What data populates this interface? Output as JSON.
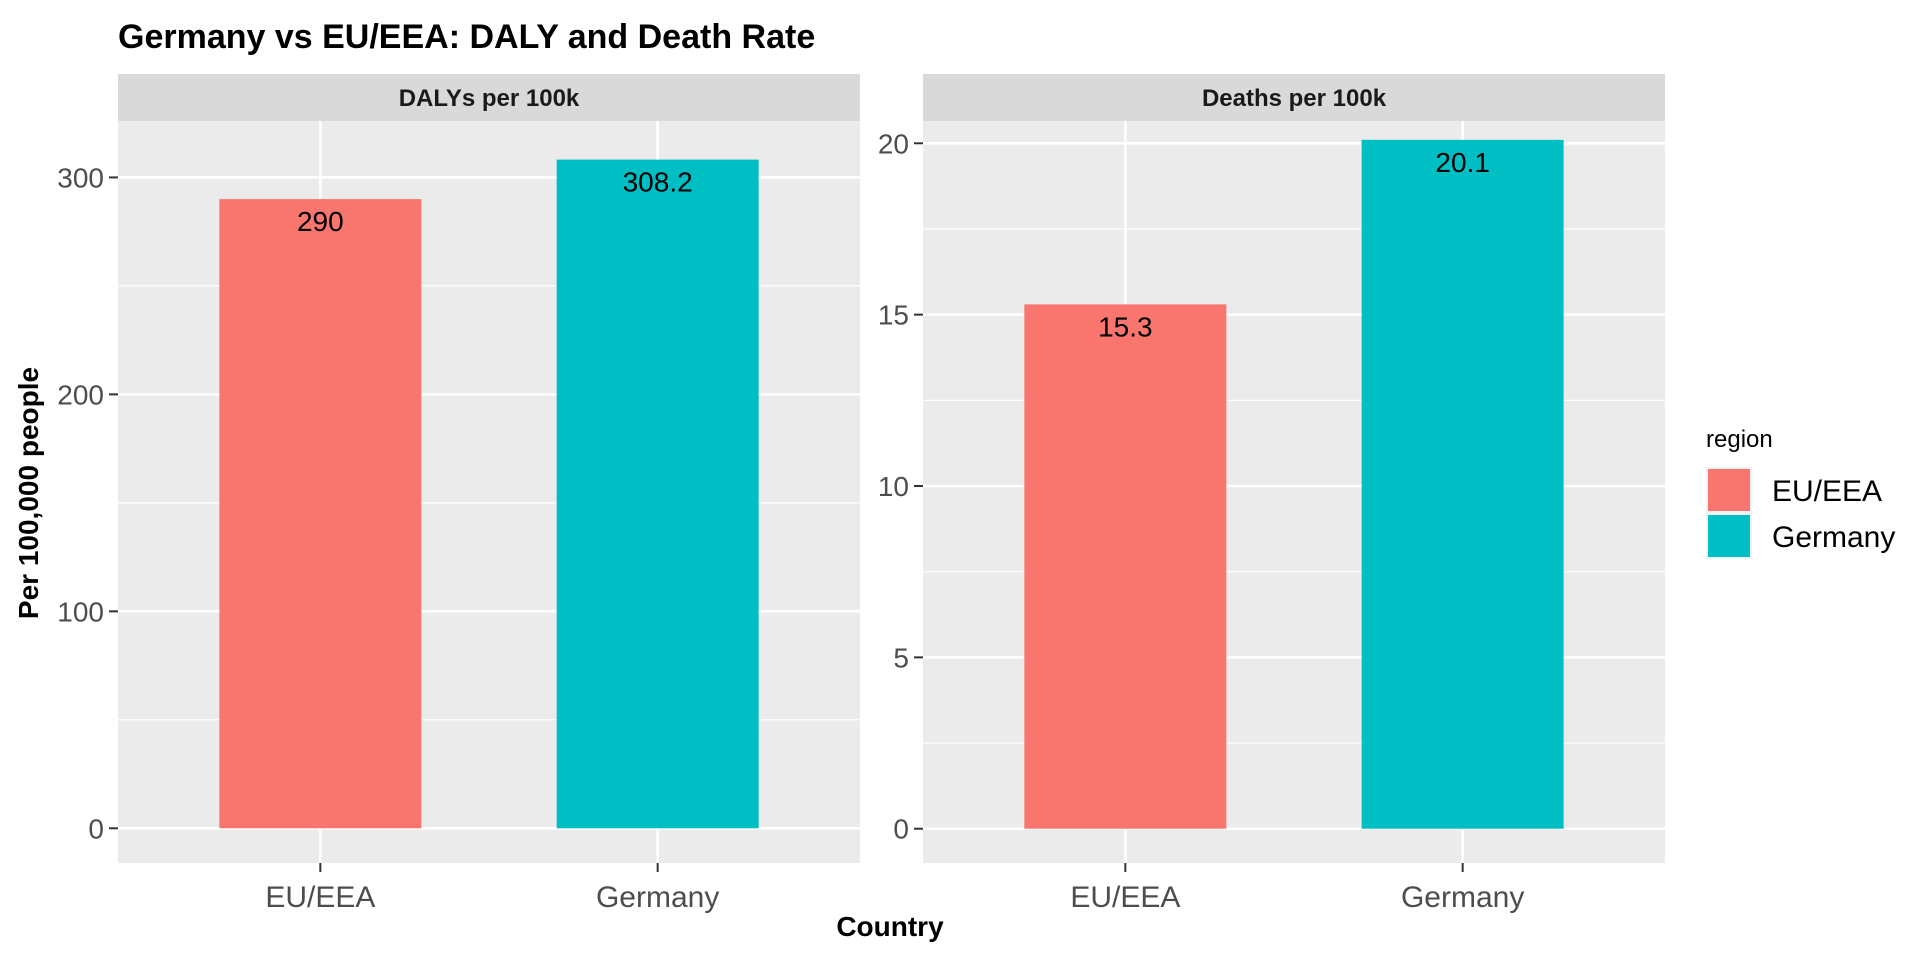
{
  "chart_data": {
    "type": "bar",
    "title": "Germany vs EU/EEA: DALY and Death Rate",
    "xlabel": "Country",
    "ylabel": "Per 100,000 people",
    "categories": [
      "EU/EEA",
      "Germany"
    ],
    "grid": true,
    "legend": {
      "title": "region",
      "position": "right",
      "entries": [
        {
          "label": "EU/EEA",
          "color": "#F8766D"
        },
        {
          "label": "Germany",
          "color": "#00BFC4"
        }
      ]
    },
    "panels": [
      {
        "title": "DALYs per 100k",
        "values": [
          290,
          308.2
        ],
        "labels": [
          "290",
          "308.2"
        ],
        "ylim": [
          -16,
          326
        ],
        "yticks": [
          0,
          100,
          200,
          300
        ],
        "ytick_labels": [
          "0",
          "100",
          "200",
          "300"
        ]
      },
      {
        "title": "Deaths per 100k",
        "values": [
          15.3,
          20.1
        ],
        "labels": [
          "15.3",
          "20.1"
        ],
        "ylim": [
          -1,
          20.65
        ],
        "yticks": [
          0,
          5,
          10,
          15,
          20
        ],
        "ytick_labels": [
          "0",
          "5",
          "10",
          "15",
          "20"
        ]
      }
    ]
  }
}
